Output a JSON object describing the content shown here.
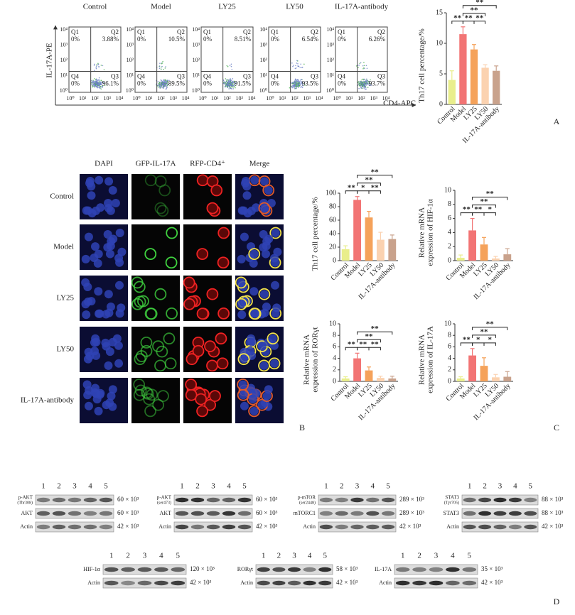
{
  "panel_a": {
    "label": "A",
    "y_axis": "IL-17A-PE",
    "x_axis": "CD4-APC",
    "ticks": [
      "10⁰",
      "10¹",
      "10²",
      "10³",
      "10⁴"
    ],
    "quadrants": [
      "Q1",
      "Q2",
      "Q3",
      "Q4"
    ],
    "plots": [
      {
        "title": "Control",
        "q1": "0%",
        "q2": "3.88%",
        "q3": "96.1%",
        "q4": "0%"
      },
      {
        "title": "Model",
        "q1": "0%",
        "q2": "10.5%",
        "q3": "89.5%",
        "q4": "0%"
      },
      {
        "title": "LY25",
        "q1": "0%",
        "q2": "8.51%",
        "q3": "91.5%",
        "q4": "0%"
      },
      {
        "title": "LY50",
        "q1": "0%",
        "q2": "6.54%",
        "q3": "93.5%",
        "q4": "0%"
      },
      {
        "title": "IL-17A-antibody",
        "q1": "0%",
        "q2": "6.26%",
        "q3": "93.7%",
        "q4": "0%"
      }
    ]
  },
  "panel_b": {
    "label": "B",
    "columns": [
      "DAPI",
      "GFP-IL-17A",
      "RFP-CD4⁺",
      "Merge"
    ],
    "rows": [
      "Control",
      "Model",
      "LY25",
      "LY50",
      "IL-17A-antibody"
    ]
  },
  "panel_c": {
    "label": "C"
  },
  "charts": [
    {
      "type": "bar",
      "y_label": [
        "Th17 cell percentage/%"
      ],
      "categories": [
        "Control",
        "Model",
        "LY25",
        "LY50",
        "IL-17A-antibody"
      ],
      "colors": [
        "#e9ee8c",
        "#f27474",
        "#f5a25a",
        "#fbd2b0",
        "#c9a28c"
      ],
      "values": [
        4,
        11.5,
        9,
        6,
        5.5
      ],
      "errors": [
        1.5,
        1.2,
        0.8,
        0.5,
        0.8
      ],
      "ylim": [
        0,
        15
      ],
      "yticks": [
        0,
        5,
        10,
        15
      ],
      "significance": [
        {
          "pair": [
            0,
            1
          ],
          "label": "**"
        },
        {
          "pair": [
            1,
            2
          ],
          "label": "**"
        },
        {
          "pair": [
            2,
            3
          ],
          "label": "**"
        },
        {
          "pair": [
            1,
            3
          ],
          "label": "**"
        },
        {
          "pair": [
            1,
            4
          ],
          "label": "**"
        }
      ]
    },
    {
      "type": "bar",
      "y_label": [
        "Th17 cell percentage/%"
      ],
      "categories": [
        "Control",
        "Model",
        "LY25",
        "LY50",
        "IL-17A-antibody"
      ],
      "colors": [
        "#e9ee8c",
        "#f27474",
        "#f5a25a",
        "#fbd2b0",
        "#c9a28c"
      ],
      "values": [
        17,
        90,
        64,
        31,
        32
      ],
      "errors": [
        5,
        5,
        9,
        11,
        6
      ],
      "ylim": [
        0,
        100
      ],
      "yticks": [
        0,
        20,
        40,
        60,
        80,
        100
      ],
      "significance": [
        {
          "pair": [
            0,
            1
          ],
          "label": "**"
        },
        {
          "pair": [
            1,
            2
          ],
          "label": "*"
        },
        {
          "pair": [
            2,
            3
          ],
          "label": "**"
        },
        {
          "pair": [
            1,
            3
          ],
          "label": "**"
        },
        {
          "pair": [
            1,
            4
          ],
          "label": "**"
        }
      ]
    },
    {
      "type": "bar",
      "y_label": [
        "Relative mRNA",
        "expression of HIF-1α"
      ],
      "categories": [
        "Control",
        "Model",
        "LY25",
        "LY50",
        "IL-17A-antibody"
      ],
      "colors": [
        "#e9ee8c",
        "#f27474",
        "#f5a25a",
        "#fbd2b0",
        "#c9a28c"
      ],
      "values": [
        0.4,
        4.3,
        2.3,
        0.3,
        0.9
      ],
      "errors": [
        0.4,
        1.7,
        1.0,
        0.3,
        0.8
      ],
      "ylim": [
        0,
        10
      ],
      "yticks": [
        0,
        2,
        4,
        6,
        8,
        10
      ],
      "significance": [
        {
          "pair": [
            0,
            1
          ],
          "label": "**"
        },
        {
          "pair": [
            1,
            2
          ],
          "label": "**"
        },
        {
          "pair": [
            2,
            3
          ],
          "label": "*"
        },
        {
          "pair": [
            1,
            3
          ],
          "label": "**"
        },
        {
          "pair": [
            1,
            4
          ],
          "label": "**"
        }
      ]
    },
    {
      "type": "bar",
      "y_label": [
        "Relative mRNA",
        "expression of RORγt"
      ],
      "categories": [
        "Control",
        "Model",
        "LY25",
        "LY50",
        "IL-17A-antibody"
      ],
      "colors": [
        "#e9ee8c",
        "#f27474",
        "#f5a25a",
        "#fbd2b0",
        "#c9a28c"
      ],
      "values": [
        0.5,
        4.0,
        1.9,
        0.6,
        0.5
      ],
      "errors": [
        0.3,
        0.9,
        0.6,
        0.3,
        0.4
      ],
      "ylim": [
        0,
        10
      ],
      "yticks": [
        0,
        2,
        4,
        6,
        8,
        10
      ],
      "significance": [
        {
          "pair": [
            0,
            1
          ],
          "label": "**"
        },
        {
          "pair": [
            1,
            2
          ],
          "label": "**"
        },
        {
          "pair": [
            2,
            3
          ],
          "label": "**"
        },
        {
          "pair": [
            1,
            3
          ],
          "label": "**"
        },
        {
          "pair": [
            1,
            4
          ],
          "label": "**"
        }
      ]
    },
    {
      "type": "bar",
      "y_label": [
        "Relative mRNA",
        "expression of IL-17A"
      ],
      "categories": [
        "Control",
        "Model",
        "LY25",
        "LY50",
        "IL-17A-antibody"
      ],
      "colors": [
        "#e9ee8c",
        "#f27474",
        "#f5a25a",
        "#fbd2b0",
        "#c9a28c"
      ],
      "values": [
        0.5,
        4.5,
        2.7,
        0.7,
        0.8
      ],
      "errors": [
        0.3,
        1.2,
        1.4,
        0.5,
        0.9
      ],
      "ylim": [
        0,
        10
      ],
      "yticks": [
        0,
        2,
        4,
        6,
        8,
        10
      ],
      "significance": [
        {
          "pair": [
            0,
            1
          ],
          "label": "**"
        },
        {
          "pair": [
            1,
            2
          ],
          "label": "*"
        },
        {
          "pair": [
            2,
            3
          ],
          "label": "*"
        },
        {
          "pair": [
            1,
            3
          ],
          "label": "**"
        },
        {
          "pair": [
            1,
            4
          ],
          "label": "**"
        }
      ]
    }
  ],
  "panel_d": {
    "label": "D",
    "lanes": [
      "1",
      "2",
      "3",
      "4",
      "5"
    ],
    "groups": [
      {
        "rows": [
          {
            "name": "p-AKT",
            "subname": "(Thr308)",
            "size": "60 × 10³"
          },
          {
            "name": "AKT",
            "size": "60 × 10³"
          },
          {
            "name": "Actin",
            "size": "42 × 10³"
          }
        ]
      },
      {
        "rows": [
          {
            "name": "p-AKT",
            "subname": "(ser473)",
            "size": "60 × 10³"
          },
          {
            "name": "AKT",
            "size": "60 × 10³"
          },
          {
            "name": "Actin",
            "size": "42 × 10³"
          }
        ]
      },
      {
        "rows": [
          {
            "name": "p-mTOR",
            "subname": "(ser2448)",
            "size": "289 × 10³"
          },
          {
            "name": "mTORC1",
            "size": "289 × 10³"
          },
          {
            "name": "Actin",
            "size": "42 × 10³"
          }
        ]
      },
      {
        "rows": [
          {
            "name": "STAT3",
            "subname": "(Tyr705)",
            "size": "88 × 10³"
          },
          {
            "name": "STAT3",
            "size": "88 × 10³"
          },
          {
            "name": "Actin",
            "size": "42 × 10³"
          }
        ]
      },
      {
        "rows": [
          {
            "name": "HIF-1α",
            "size": "120 × 10³"
          },
          {
            "name": "Actin",
            "size": "42 × 10³"
          }
        ]
      },
      {
        "rows": [
          {
            "name": "RORγt",
            "size": "58 × 10³"
          },
          {
            "name": "Actin",
            "size": "42 × 10³"
          }
        ]
      },
      {
        "rows": [
          {
            "name": "IL-17A",
            "size": "35 × 10³"
          },
          {
            "name": "Actin",
            "size": "42 × 10³"
          }
        ]
      }
    ]
  }
}
